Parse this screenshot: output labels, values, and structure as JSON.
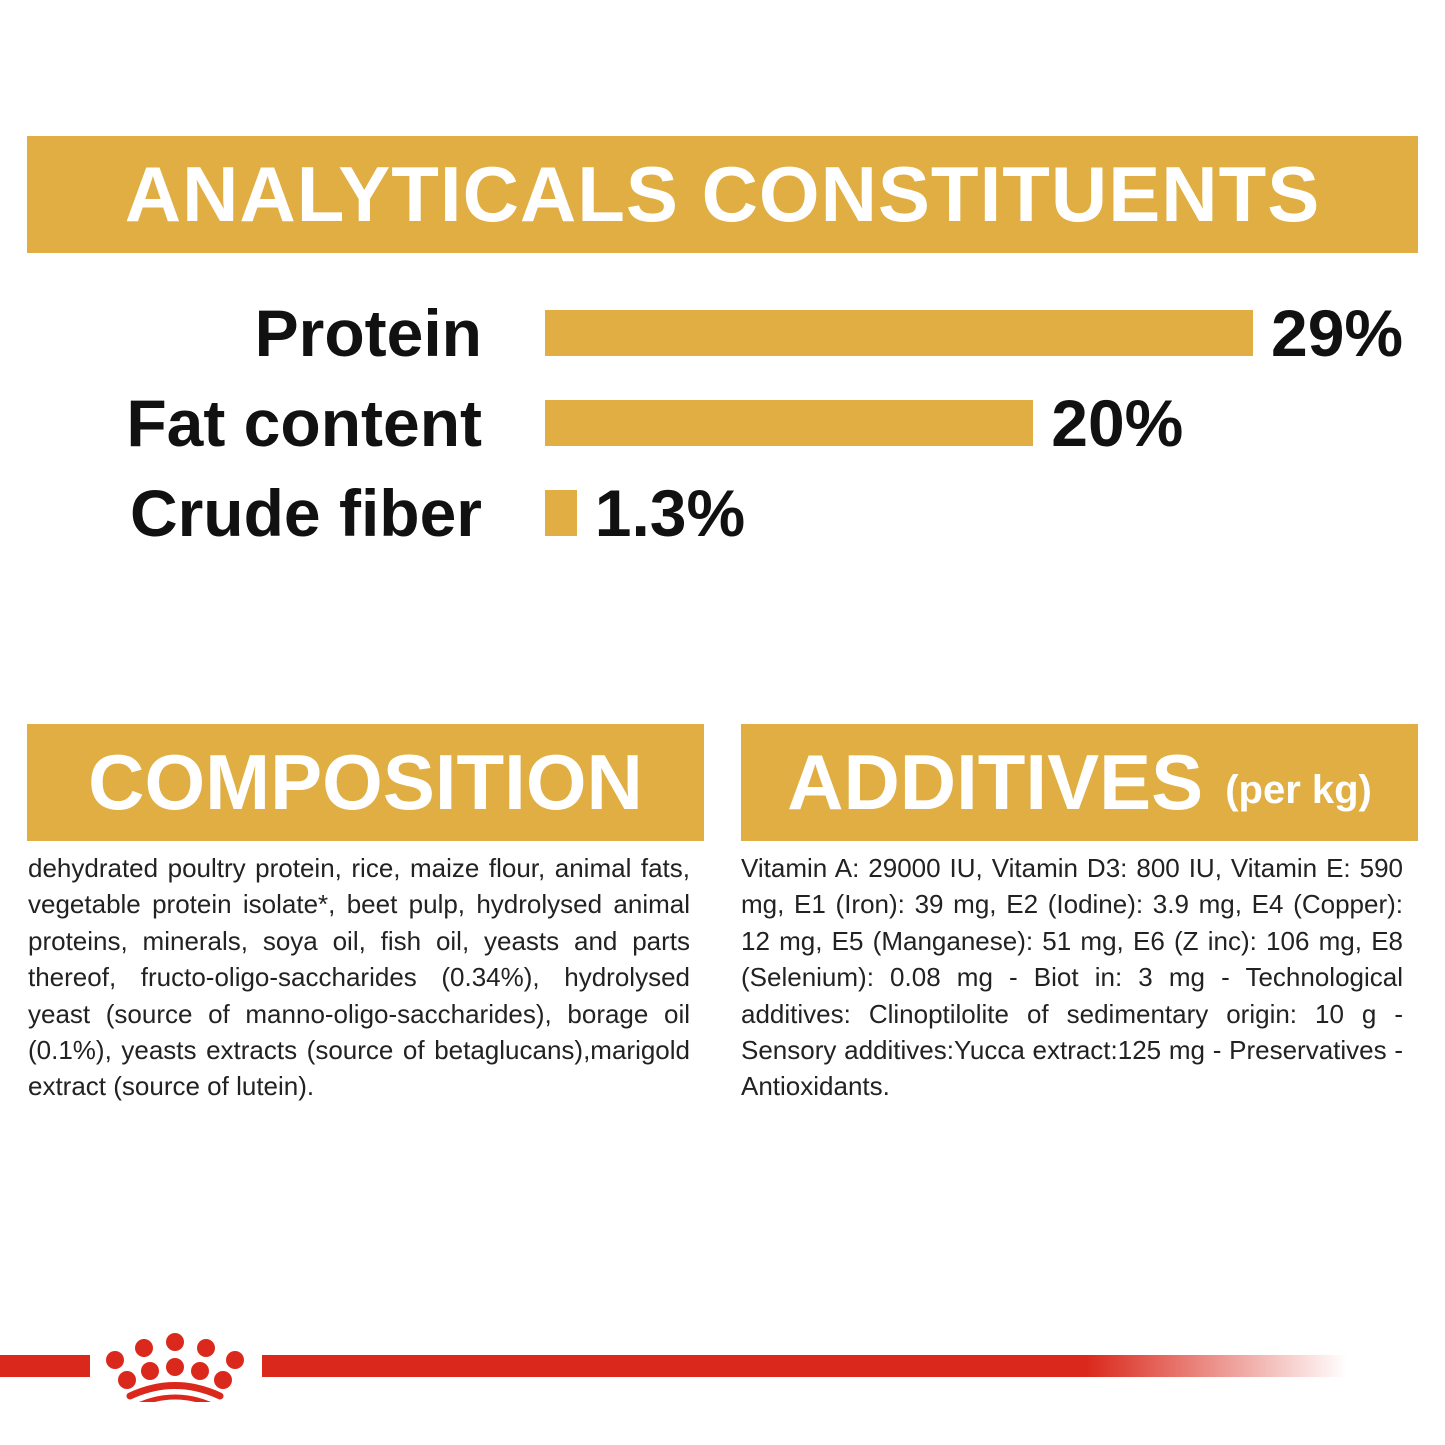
{
  "analytical": {
    "title": "ANALYTICALS CONSTITUENTS"
  },
  "chart_data": {
    "type": "bar",
    "orientation": "horizontal",
    "categories": [
      "Protein",
      "Fat content",
      "Crude fiber"
    ],
    "values": [
      29,
      20,
      1.3
    ],
    "data_labels": [
      "29%",
      "20%",
      "1.3%"
    ],
    "unit": "%",
    "bar_color": "#e0ae42",
    "grid": false
  },
  "composition": {
    "title": "COMPOSITION",
    "text": "dehydrated poultry protein, rice, maize flour, animal fats, vegetable protein isolate*, beet pulp, hydrolysed animal proteins, minerals, soya oil, fish oil, yeasts and parts thereof, fructo-oligo-saccharides (0.34%), hydrolysed yeast (source of manno-oligo-saccharides), borage oil (0.1%), yeasts extracts (source of betaglucans),marigold extract (source of lutein)."
  },
  "additives": {
    "title": "ADDITIVES",
    "subtitle": "(per kg)",
    "text": "Vitamin A: 29000 IU, Vitamin D3: 800 IU, Vitamin E: 590 mg, E1 (Iron): 39 mg, E2 (Iodine): 3.9 mg, E4 (Copper): 12 mg, E5 (Manganese): 51 mg, E6 (Z inc): 106 mg, E8 (Selenium): 0.08 mg - Biot in: 3 mg - Technological additives: Clinoptilolite of sedimentary origin: 10 g - Sensory additives:Yucca extract:125 mg - Preservatives - Antioxidants."
  },
  "colors": {
    "accent": "#e0ae42",
    "brand_red": "#da291c"
  },
  "logo": {
    "icon": "royal-canin-crown-icon"
  }
}
